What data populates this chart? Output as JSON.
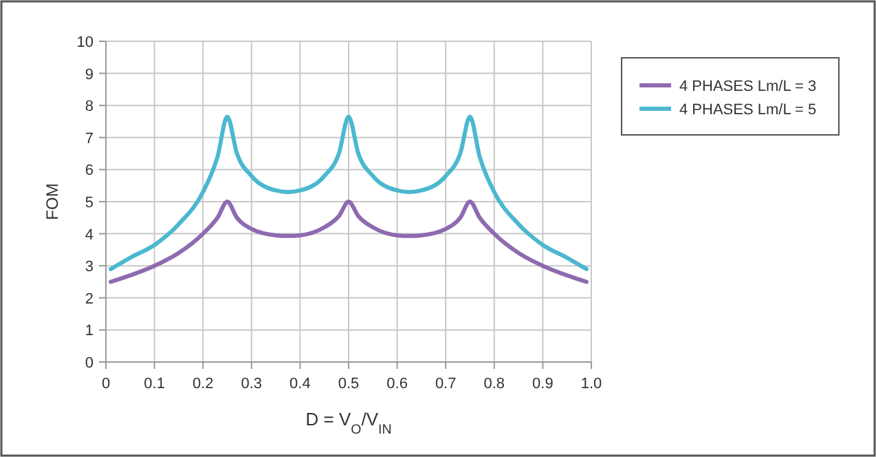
{
  "chart_data": {
    "type": "line",
    "xlabel": "D = V$_{O}$/V$_{IN}$",
    "ylabel": "FOM",
    "x": [
      0.01,
      0.05,
      0.1,
      0.15,
      0.2,
      0.23,
      0.25,
      0.27,
      0.3,
      0.35,
      0.375,
      0.4,
      0.45,
      0.48,
      0.5,
      0.52,
      0.55,
      0.6,
      0.625,
      0.65,
      0.7,
      0.73,
      0.75,
      0.77,
      0.8,
      0.85,
      0.9,
      0.95,
      0.99
    ],
    "series": [
      {
        "name": "4 PHASES Lm/L = 3",
        "color": "#8e6bb0",
        "values": [
          2.5,
          2.7,
          3.0,
          3.4,
          4.0,
          4.5,
          5.0,
          4.5,
          4.15,
          3.95,
          3.93,
          3.95,
          4.2,
          4.55,
          5.0,
          4.55,
          4.2,
          3.95,
          3.93,
          3.95,
          4.15,
          4.5,
          5.0,
          4.5,
          4.0,
          3.4,
          3.0,
          2.7,
          2.5
        ]
      },
      {
        "name": "4 PHASES Lm/L = 5",
        "color": "#4bb8cf",
        "values": [
          2.9,
          3.25,
          3.65,
          4.3,
          5.3,
          6.4,
          7.65,
          6.5,
          5.8,
          5.35,
          5.3,
          5.35,
          5.8,
          6.5,
          7.65,
          6.5,
          5.8,
          5.35,
          5.3,
          5.35,
          5.8,
          6.5,
          7.65,
          6.4,
          5.3,
          4.3,
          3.65,
          3.25,
          2.9
        ]
      }
    ],
    "xlim": [
      0,
      1.0
    ],
    "xticks": [
      0,
      0.1,
      0.2,
      0.3,
      0.4,
      0.5,
      0.6,
      0.7,
      0.8,
      0.9,
      "1.0"
    ],
    "ylim": [
      0,
      10
    ],
    "yticks": [
      0,
      1,
      2,
      3,
      4,
      5,
      6,
      7,
      8,
      9,
      10
    ],
    "grid": true,
    "legend": "top right",
    "marker": "none",
    "line_style": "solid"
  }
}
